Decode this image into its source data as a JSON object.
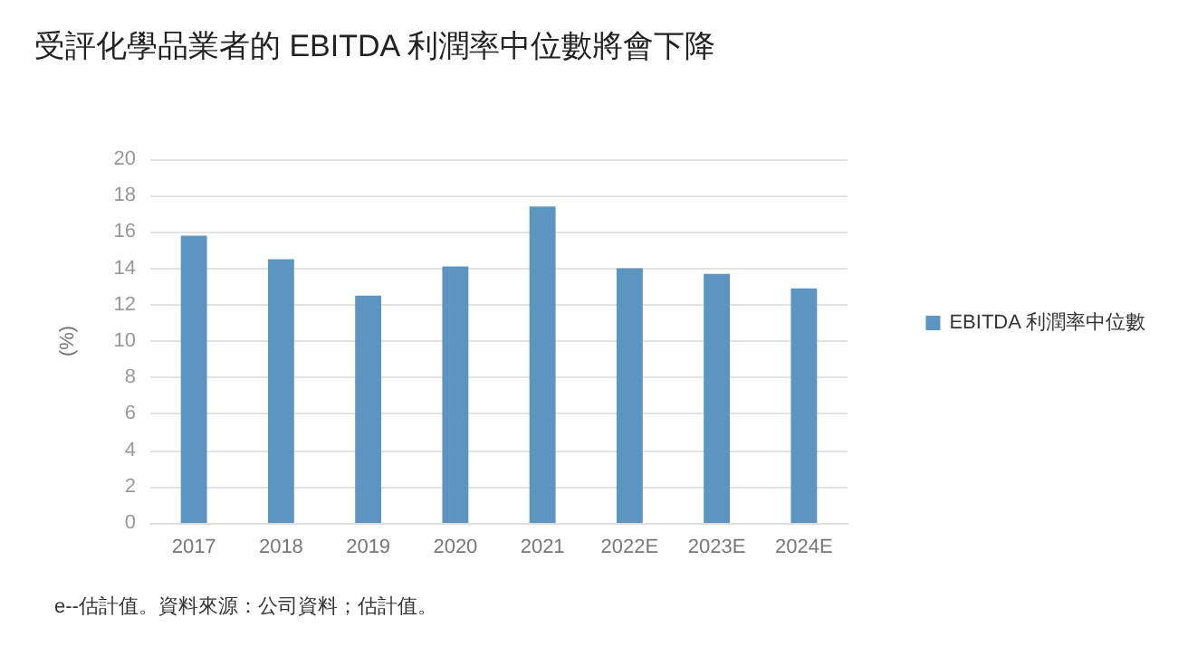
{
  "chart_data": {
    "type": "bar",
    "title": "受評化學品業者的 EBITDA 利潤率中位數將會下降",
    "ylabel": "(%)",
    "categories": [
      "2017",
      "2018",
      "2019",
      "2020",
      "2021",
      "2022E",
      "2023E",
      "2024E"
    ],
    "series": [
      {
        "name": "EBITDA 利潤率中位數",
        "color": "#5b95c0",
        "values": [
          15.8,
          14.5,
          12.5,
          14.1,
          17.4,
          14.0,
          13.7,
          12.9
        ]
      }
    ],
    "ylim": [
      0,
      20
    ],
    "yticks": [
      0,
      2,
      4,
      6,
      8,
      10,
      12,
      14,
      16,
      18,
      20
    ],
    "grid": "y",
    "legend": "right",
    "annotations": [
      "e--估計值。資料來源：公司資料；估計值。"
    ]
  }
}
